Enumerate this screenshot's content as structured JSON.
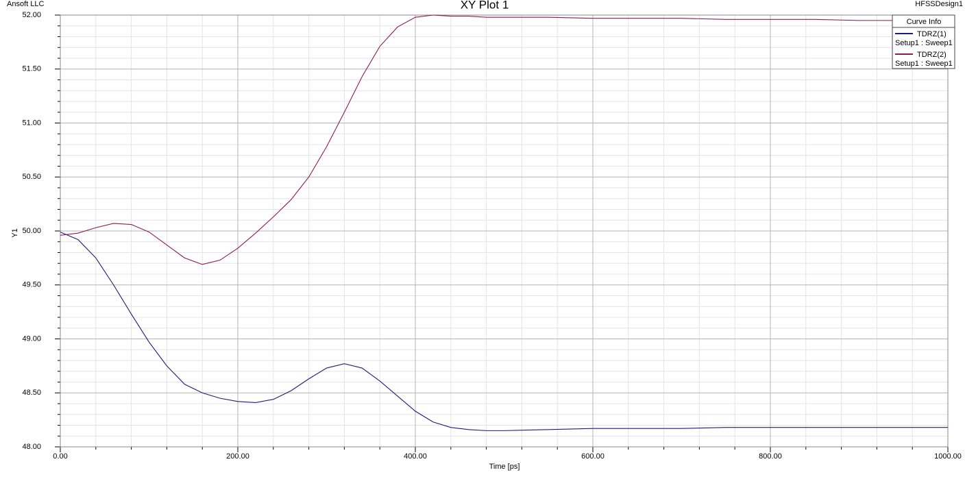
{
  "chart_data": {
    "type": "line",
    "title": "XY Plot 1",
    "corner_left": "Ansoft LLC",
    "corner_right": "HFSSDesign1",
    "x_label": "Time [ps]",
    "y_label": "Y1",
    "legend_title": "Curve Info",
    "x": [
      0,
      20,
      40,
      60,
      80,
      100,
      120,
      140,
      160,
      180,
      200,
      220,
      240,
      260,
      280,
      300,
      320,
      340,
      360,
      380,
      400,
      420,
      440,
      460,
      480,
      500,
      550,
      600,
      650,
      700,
      750,
      800,
      850,
      900,
      950,
      1000
    ],
    "series": [
      {
        "name": "TDRZ(1)",
        "setup": "Setup1 : Sweep1",
        "color": "#1c1c7c",
        "values": [
          49.99,
          49.92,
          49.75,
          49.5,
          49.23,
          48.97,
          48.75,
          48.58,
          48.5,
          48.45,
          48.42,
          48.41,
          48.44,
          48.52,
          48.63,
          48.73,
          48.77,
          48.73,
          48.61,
          48.47,
          48.33,
          48.23,
          48.18,
          48.16,
          48.15,
          48.15,
          48.16,
          48.17,
          48.17,
          48.17,
          48.18,
          48.18,
          48.18,
          48.18,
          48.18,
          48.18
        ]
      },
      {
        "name": "TDRZ(2)",
        "setup": "Setup1 : Sweep1",
        "color": "#8b1a55",
        "values": [
          49.96,
          49.98,
          50.03,
          50.07,
          50.06,
          49.99,
          49.87,
          49.75,
          49.69,
          49.73,
          49.84,
          49.98,
          50.13,
          50.29,
          50.5,
          50.78,
          51.1,
          51.43,
          51.71,
          51.89,
          51.98,
          52.0,
          51.99,
          51.99,
          51.98,
          51.98,
          51.98,
          51.97,
          51.97,
          51.97,
          51.96,
          51.96,
          51.96,
          51.95,
          51.95,
          51.95
        ]
      }
    ],
    "xlim": [
      0,
      1000
    ],
    "ylim": [
      48,
      52
    ],
    "xticks": [
      {
        "value": 0,
        "label": "0.00"
      },
      {
        "value": 200,
        "label": "200.00"
      },
      {
        "value": 400,
        "label": "400.00"
      },
      {
        "value": 600,
        "label": "600.00"
      },
      {
        "value": 800,
        "label": "800.00"
      },
      {
        "value": 1000,
        "label": "1000.00"
      }
    ],
    "yticks": [
      {
        "value": 48,
        "label": "48.00"
      },
      {
        "value": 48.5,
        "label": "48.50"
      },
      {
        "value": 49,
        "label": "49.00"
      },
      {
        "value": 49.5,
        "label": "49.50"
      },
      {
        "value": 50,
        "label": "50.00"
      },
      {
        "value": 50.5,
        "label": "50.50"
      },
      {
        "value": 51,
        "label": "51.00"
      },
      {
        "value": 51.5,
        "label": "51.50"
      },
      {
        "value": 52,
        "label": "52.00"
      }
    ],
    "grid": true
  }
}
